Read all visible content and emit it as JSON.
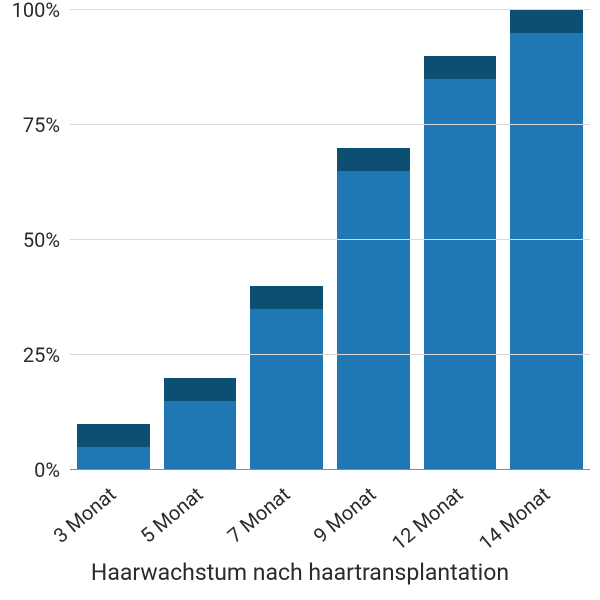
{
  "chart": {
    "type": "bar",
    "caption": "Haarwachstum nach haartransplantation",
    "caption_fontsize": 23,
    "ylim": [
      0,
      100
    ],
    "ytick_step": 25,
    "y_ticks": [
      0,
      25,
      50,
      75,
      100
    ],
    "y_tick_labels": [
      "0%",
      "25%",
      "50%",
      "75%",
      "100%"
    ],
    "y_label_fontsize": 20,
    "categories": [
      "3 Monat",
      "5 Monat",
      "7 Monat",
      "9 Monat",
      "12 Monat",
      "14 Monat"
    ],
    "values_lower": [
      5,
      15,
      35,
      65,
      85,
      95
    ],
    "values_upper": [
      10,
      20,
      40,
      70,
      90,
      100
    ],
    "bar_color_main": "#1f77b4",
    "bar_color_cap": "#0d4f73",
    "grid_color": "#d9d9d9",
    "zero_line_color": "#888888",
    "background_color": "#ffffff",
    "x_label_fontsize": 20,
    "x_label_rotation_deg": -40,
    "bar_width_ratio": 0.84
  }
}
